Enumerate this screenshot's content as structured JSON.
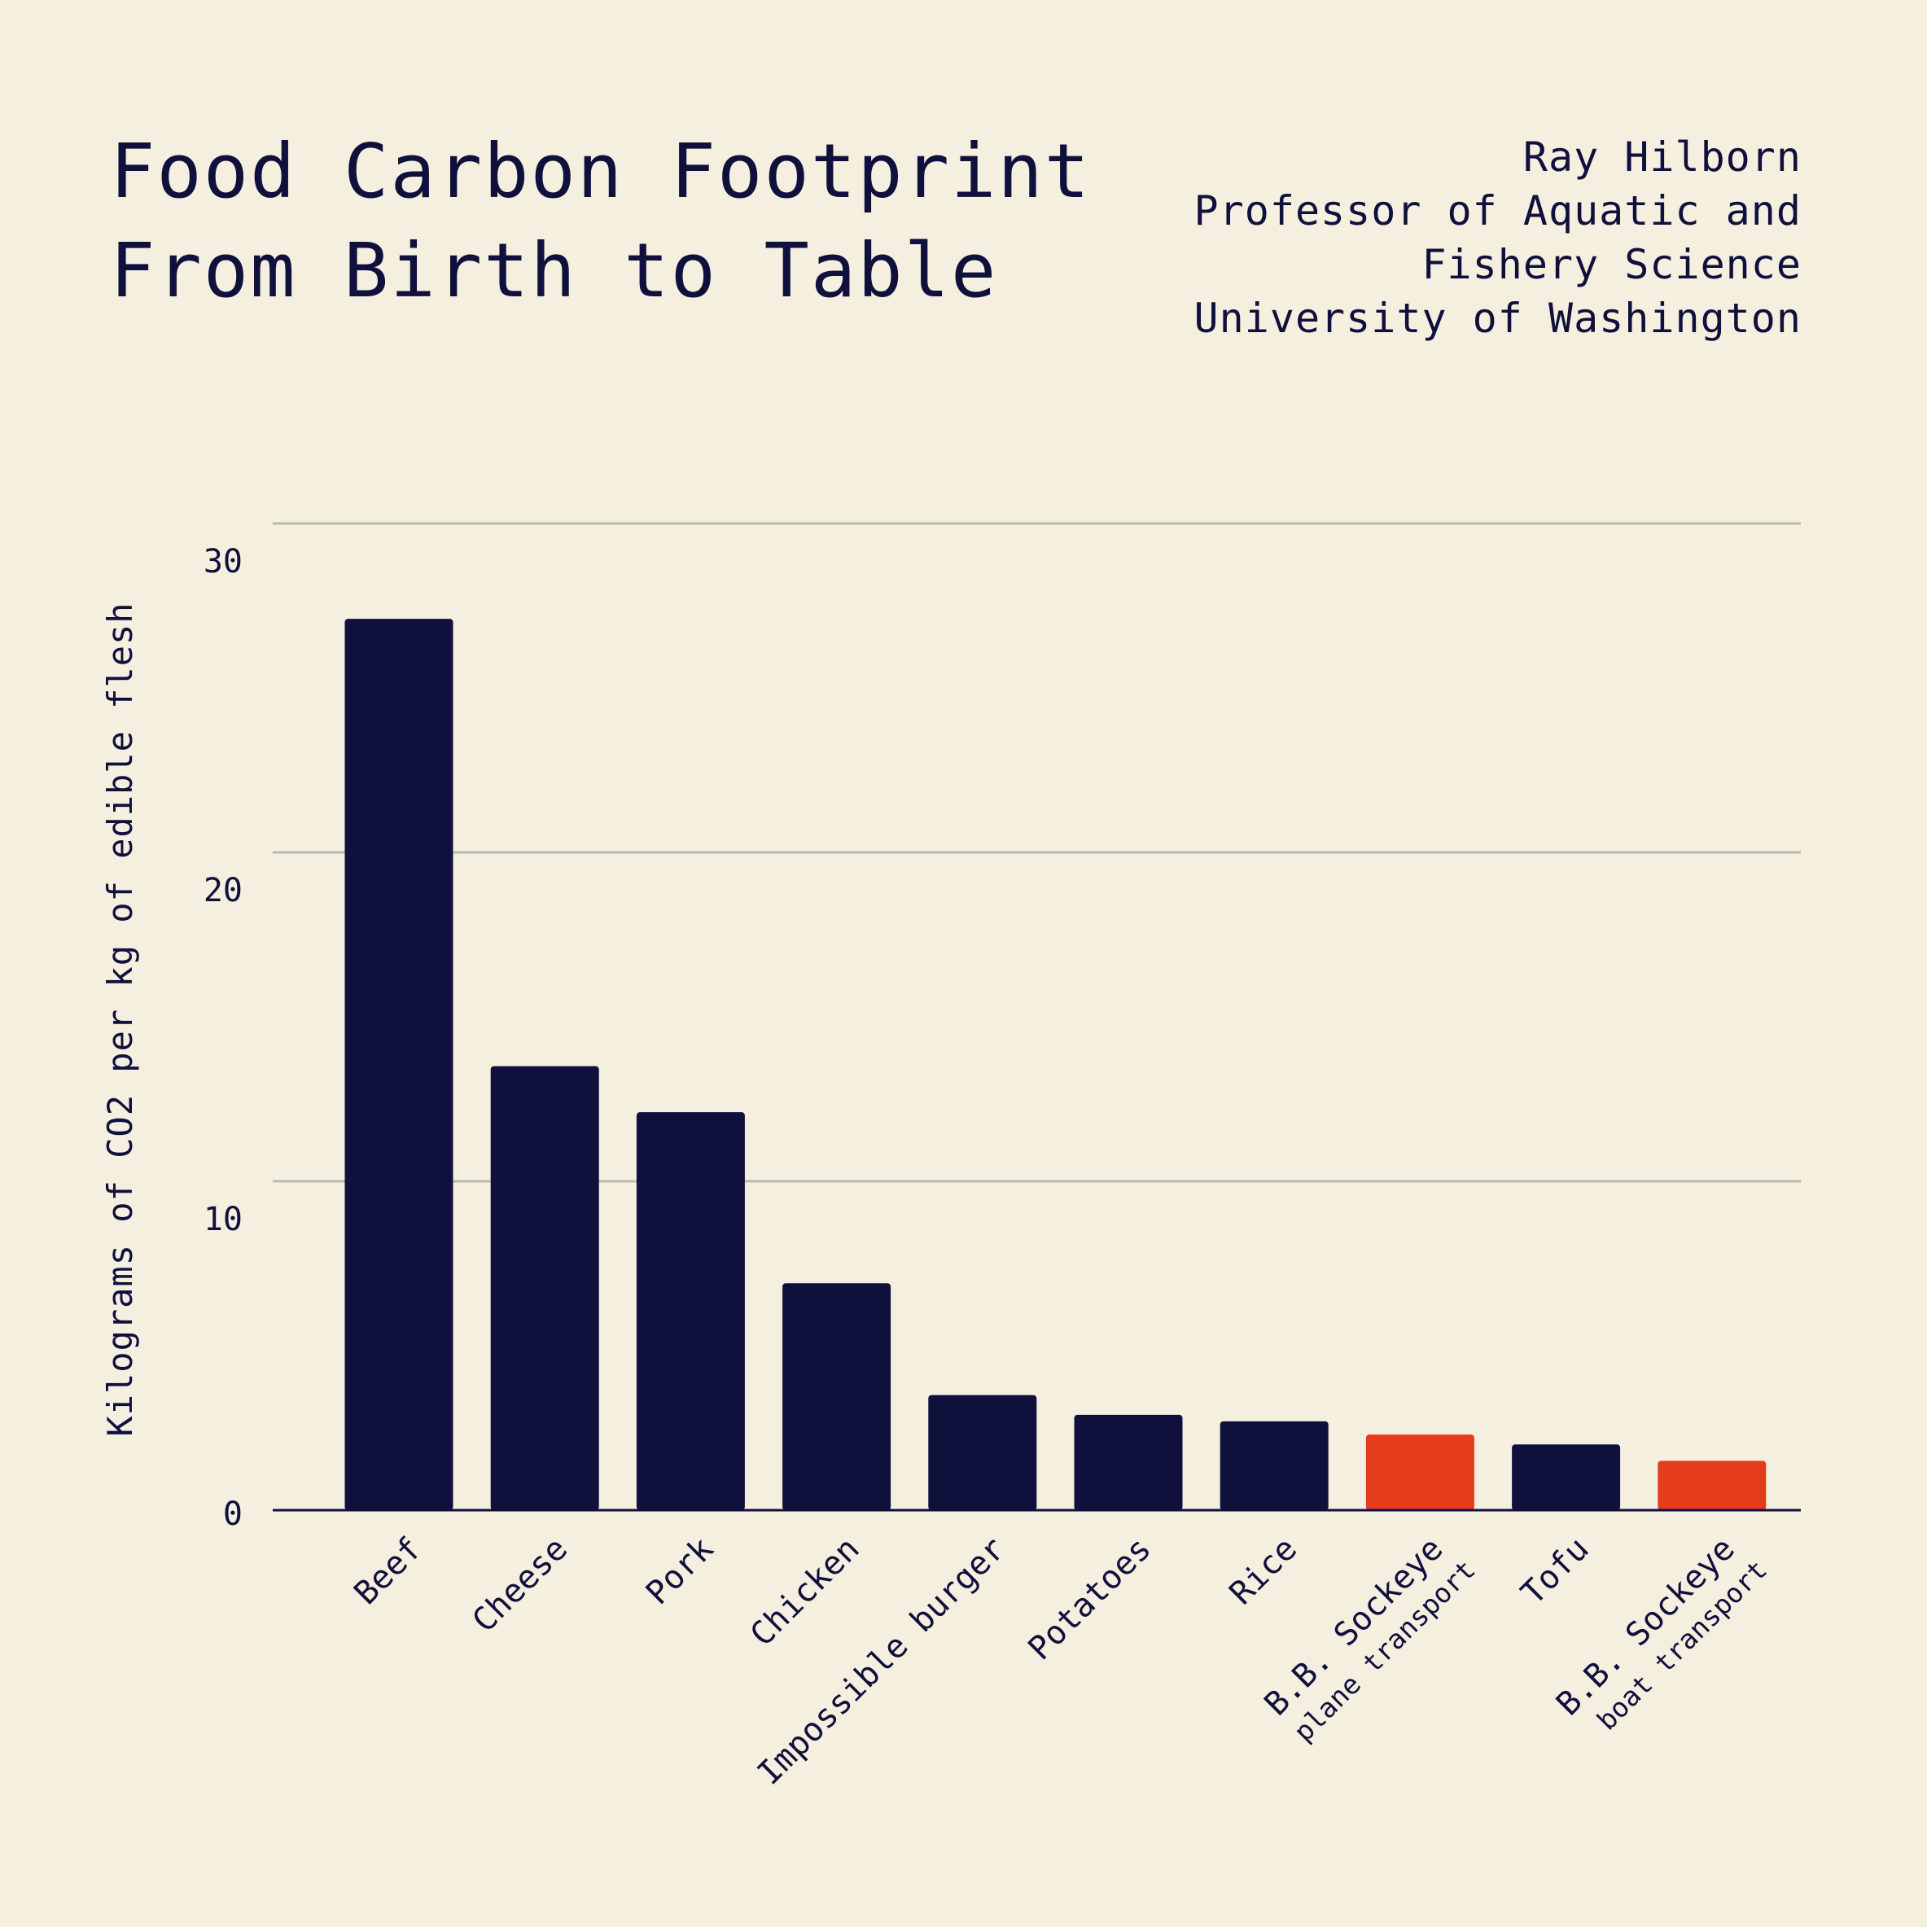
{
  "header": {
    "title_line1": "Food Carbon Footprint",
    "title_line2": "From Birth to Table",
    "author_line1": "Ray Hilborn",
    "author_line2": "Professor of Aquatic and",
    "author_line3": "Fishery Science",
    "author_line4": "University of Washington"
  },
  "chart_data": {
    "type": "bar",
    "title": "Food Carbon Footprint From Birth to Table",
    "xlabel": "",
    "ylabel": "Kilograms of CO2 per kg of edible flesh",
    "ylim": [
      0,
      30
    ],
    "yticks": [
      0,
      10,
      20,
      30
    ],
    "grid": true,
    "categories": [
      "Beef",
      "Cheese",
      "Pork",
      "Chicken",
      "Impossible burger",
      "Potatoes",
      "Rice",
      "B.B. Sockeye",
      "Tofu",
      "B.B. Sockeye"
    ],
    "category_sublabels": [
      "",
      "",
      "",
      "",
      "",
      "",
      "",
      "plane transport",
      "",
      "boat transport"
    ],
    "values": [
      27.1,
      13.5,
      12.1,
      6.9,
      3.5,
      2.9,
      2.7,
      2.3,
      2.0,
      1.5
    ],
    "bar_colors": [
      "#10103c",
      "#10103c",
      "#10103c",
      "#10103c",
      "#10103c",
      "#10103c",
      "#10103c",
      "#e63c1e",
      "#10103c",
      "#e63c1e"
    ]
  },
  "colors": {
    "background": "#f5efe0",
    "ink": "#10103c",
    "highlight": "#e63c1e",
    "grid": "#b9b9aa"
  }
}
